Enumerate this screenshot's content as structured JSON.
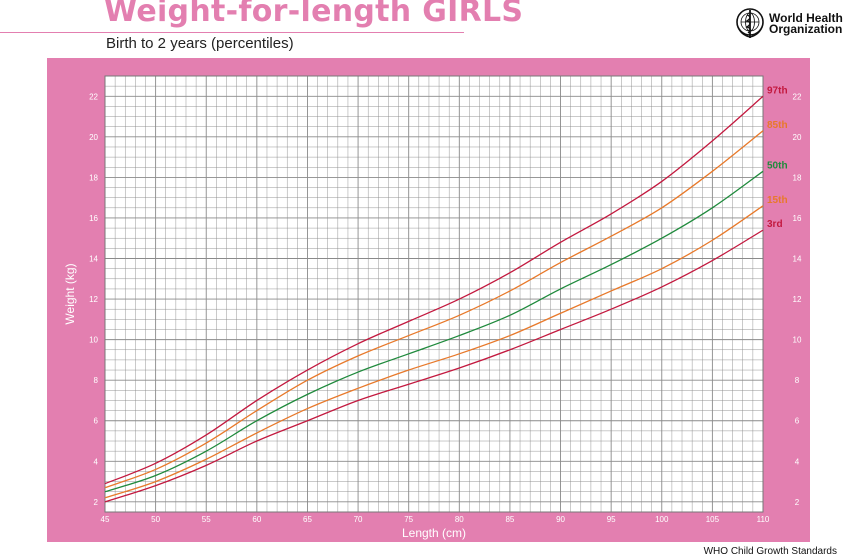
{
  "header": {
    "title": "Weight-for-length GIRLS",
    "subtitle": "Birth to 2 years (percentiles)"
  },
  "logo": {
    "icon": "who-emblem-icon",
    "line1": "World Health",
    "line2": "Organization"
  },
  "footer": {
    "text": "WHO Child Growth Standards"
  },
  "colors": {
    "title_pink": "#e37fb0",
    "frame_pink": "#e37fb0",
    "grid": "#8a8a8a",
    "p3": "#c3193f",
    "p15": "#e8792a",
    "p50": "#1f8a3c",
    "p85": "#e8792a",
    "p97": "#c3193f"
  },
  "chart_data": {
    "type": "line",
    "title": "Weight-for-length GIRLS",
    "subtitle": "Birth to 2 years (percentiles)",
    "xlabel": "Length (cm)",
    "ylabel": "Weight (kg)",
    "xlim": [
      45,
      110
    ],
    "ylim": [
      1.5,
      23
    ],
    "x_ticks": [
      45,
      50,
      55,
      60,
      65,
      70,
      75,
      80,
      85,
      90,
      95,
      100,
      105,
      110
    ],
    "x_tick_labels": [
      "45",
      "50",
      "55",
      "60",
      "65",
      "70",
      "75",
      "80",
      "85",
      "90",
      "95",
      "100",
      "105",
      "110"
    ],
    "y_ticks": [
      2,
      4,
      6,
      8,
      10,
      12,
      14,
      16,
      18,
      20,
      22
    ],
    "y_tick_labels": [
      "2",
      "4",
      "6",
      "8",
      "10",
      "12",
      "14",
      "16",
      "18",
      "20",
      "22"
    ],
    "grid": true,
    "x": [
      45,
      50,
      55,
      60,
      65,
      70,
      75,
      80,
      85,
      90,
      95,
      100,
      105,
      110
    ],
    "series": [
      {
        "name": "97th",
        "color": "#c3193f",
        "values": [
          2.9,
          3.9,
          5.3,
          7.0,
          8.5,
          9.8,
          10.9,
          12.0,
          13.3,
          14.8,
          16.2,
          17.8,
          19.8,
          22.0
        ]
      },
      {
        "name": "85th",
        "color": "#e8792a",
        "values": [
          2.7,
          3.6,
          4.9,
          6.5,
          8.0,
          9.2,
          10.2,
          11.2,
          12.4,
          13.8,
          15.1,
          16.5,
          18.3,
          20.3
        ]
      },
      {
        "name": "50th",
        "color": "#1f8a3c",
        "values": [
          2.5,
          3.3,
          4.5,
          6.0,
          7.3,
          8.4,
          9.3,
          10.2,
          11.2,
          12.5,
          13.7,
          15.0,
          16.5,
          18.3
        ]
      },
      {
        "name": "15th",
        "color": "#e8792a",
        "values": [
          2.2,
          3.0,
          4.1,
          5.4,
          6.6,
          7.6,
          8.5,
          9.3,
          10.2,
          11.3,
          12.4,
          13.5,
          14.9,
          16.6
        ]
      },
      {
        "name": "3rd",
        "color": "#c3193f",
        "values": [
          2.0,
          2.8,
          3.8,
          5.0,
          6.0,
          7.0,
          7.8,
          8.6,
          9.5,
          10.5,
          11.5,
          12.6,
          13.9,
          15.4
        ]
      }
    ]
  }
}
